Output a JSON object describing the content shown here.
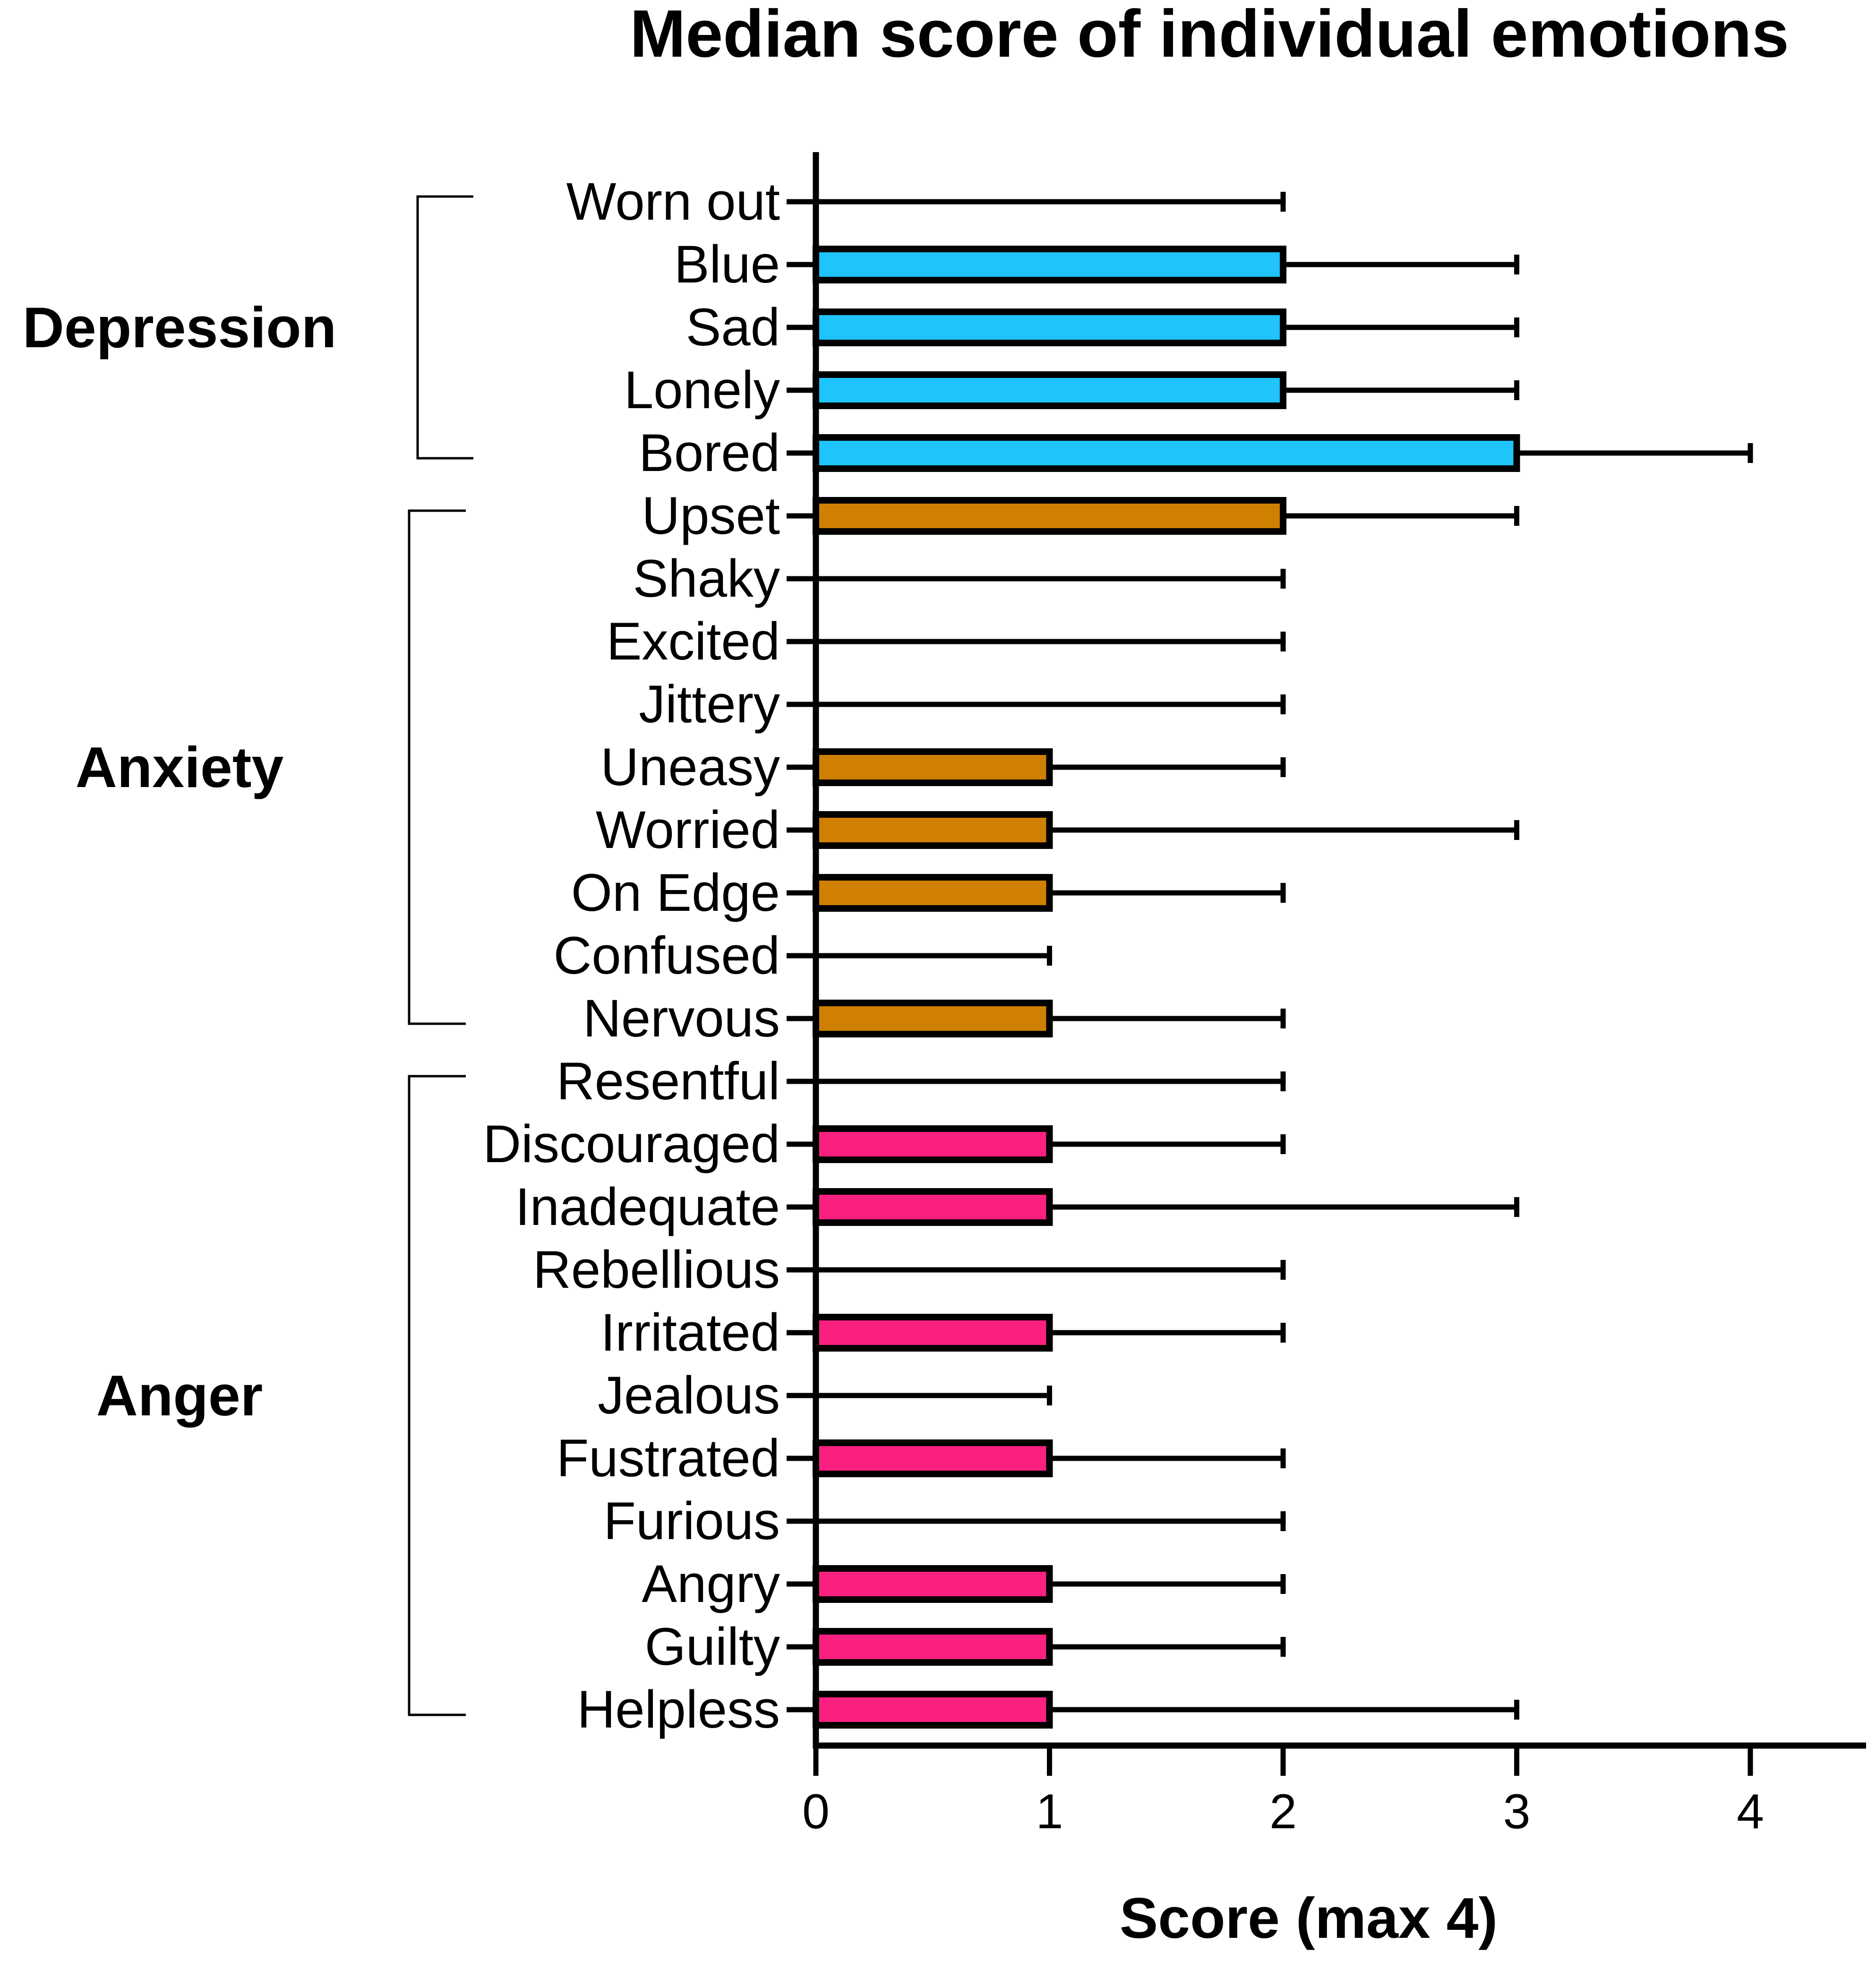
{
  "chart_data": {
    "type": "bar",
    "orientation": "horizontal",
    "title": "Median score of individual emotions",
    "xlabel": "Score (max 4)",
    "ylabel": "",
    "xlim": [
      0,
      4.5
    ],
    "xticks": [
      0,
      1,
      2,
      3,
      4
    ],
    "grid": false,
    "categories": [
      "Worn out",
      "Blue",
      "Sad",
      "Lonely",
      "Bored",
      "Upset",
      "Shaky",
      "Excited",
      "Jittery",
      "Uneasy",
      "Worried",
      "On Edge",
      "Confused",
      "Nervous",
      "Resentful",
      "Discouraged",
      "Inadequate",
      "Rebellious",
      "Irritated",
      "Jealous",
      "Fustrated",
      "Furious",
      "Angry",
      "Guilty",
      "Helpless"
    ],
    "values": [
      0,
      2,
      2,
      2,
      3,
      2,
      0,
      0,
      0,
      1,
      1,
      1,
      0,
      1,
      0,
      1,
      1,
      0,
      1,
      0,
      1,
      0,
      1,
      1,
      1
    ],
    "error_upper": [
      2,
      3,
      3,
      3,
      4,
      3,
      2,
      2,
      2,
      2,
      3,
      2,
      1,
      2,
      2,
      2,
      3,
      2,
      2,
      1,
      2,
      2,
      2,
      2,
      3
    ],
    "groups": [
      {
        "name": "Depression",
        "start": 0,
        "end": 4,
        "color": "#1EC4FA"
      },
      {
        "name": "Anxiety",
        "start": 5,
        "end": 13,
        "color": "#D08000"
      },
      {
        "name": "Anger",
        "start": 14,
        "end": 24,
        "color": "#FA2080"
      }
    ]
  }
}
